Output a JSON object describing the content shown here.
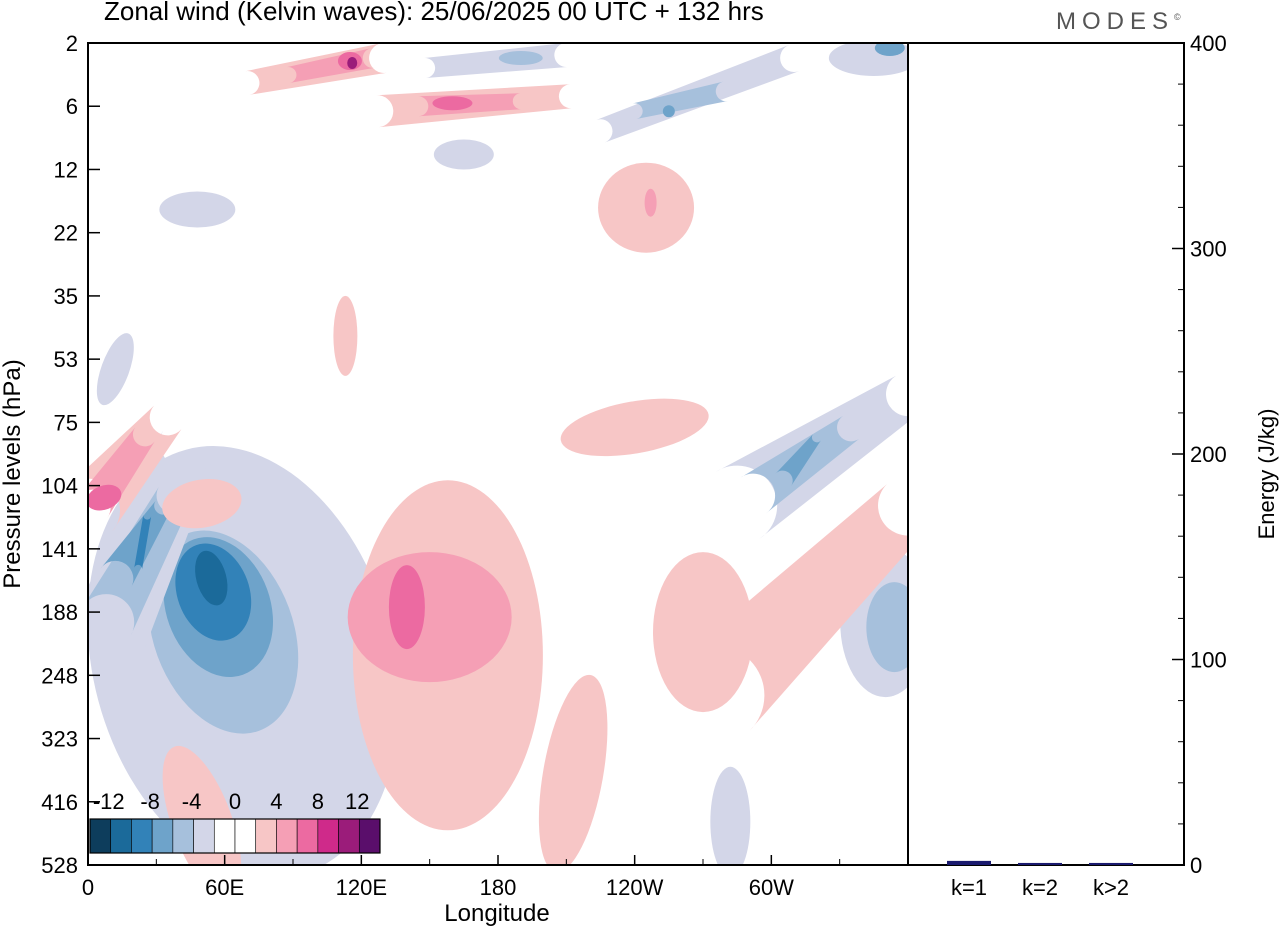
{
  "title": "Zonal wind (Kelvin waves):  25/06/2025  00 UTC  + 132 hrs",
  "logo_text": "MODES",
  "logo_mark": "©",
  "chart_data": [
    {
      "type": "heatmap",
      "title": "Zonal wind (Kelvin waves):  25/06/2025  00 UTC  + 132 hrs",
      "xlabel": "Longitude",
      "ylabel": "Pressure levels (hPa)",
      "x_ticks": [
        "0",
        "60E",
        "120E",
        "180",
        "120W",
        "60W"
      ],
      "x_tick_degrees": [
        0,
        60,
        120,
        180,
        240,
        300
      ],
      "xlim": [
        0,
        360
      ],
      "y_ticks": [
        "2",
        "6",
        "12",
        "22",
        "35",
        "53",
        "75",
        "104",
        "141",
        "188",
        "248",
        "323",
        "416",
        "528"
      ],
      "y_scale": "categorical model levels",
      "colorbar_labels": [
        "-12",
        "-8",
        "-4",
        "0",
        "4",
        "8",
        "12"
      ],
      "colorbar_colors": [
        "#0d3d5c",
        "#1b6a9a",
        "#3282b8",
        "#6ea3ca",
        "#a6c0dc",
        "#d3d6e8",
        "#ffffff",
        "#ffffff",
        "#f7c6c6",
        "#f59fb5",
        "#ec6aa1",
        "#cf2a8a",
        "#9b1c7a",
        "#5a0e6b"
      ],
      "features": [
        {
          "sign": "negative",
          "peak": -12,
          "lon_center": 55,
          "level_center": "188"
        },
        {
          "sign": "negative",
          "peak": -8,
          "lon_center": 20,
          "level_center": "141"
        },
        {
          "sign": "negative",
          "peak": -8,
          "lon_center": 315,
          "level_center": "75"
        },
        {
          "sign": "negative",
          "peak": -8,
          "lon_center": 350,
          "level_center": "188"
        },
        {
          "sign": "negative",
          "peak": -8,
          "lon_center": 270,
          "level_center": "6"
        },
        {
          "sign": "positive",
          "peak": 8,
          "lon_center": 140,
          "level_center": "188"
        },
        {
          "sign": "positive",
          "peak": 8,
          "lon_center": 5,
          "level_center": "104"
        },
        {
          "sign": "positive",
          "peak": 12,
          "lon_center": 115,
          "level_center": "2"
        },
        {
          "sign": "positive",
          "peak": 8,
          "lon_center": 160,
          "level_center": "6"
        },
        {
          "sign": "positive",
          "peak": 4,
          "lon_center": 245,
          "level_center": "22"
        },
        {
          "sign": "positive",
          "peak": 4,
          "lon_center": 280,
          "level_center": "188"
        }
      ]
    },
    {
      "type": "bar",
      "categories": [
        "k=1",
        "k=2",
        "k>2"
      ],
      "values": [
        2,
        1,
        1
      ],
      "ylabel": "Energy (J/kg)",
      "ylim": [
        0,
        400
      ],
      "y_ticks": [
        "0",
        "100",
        "200",
        "300",
        "400"
      ],
      "bar_color": "#1a1a6e"
    }
  ]
}
